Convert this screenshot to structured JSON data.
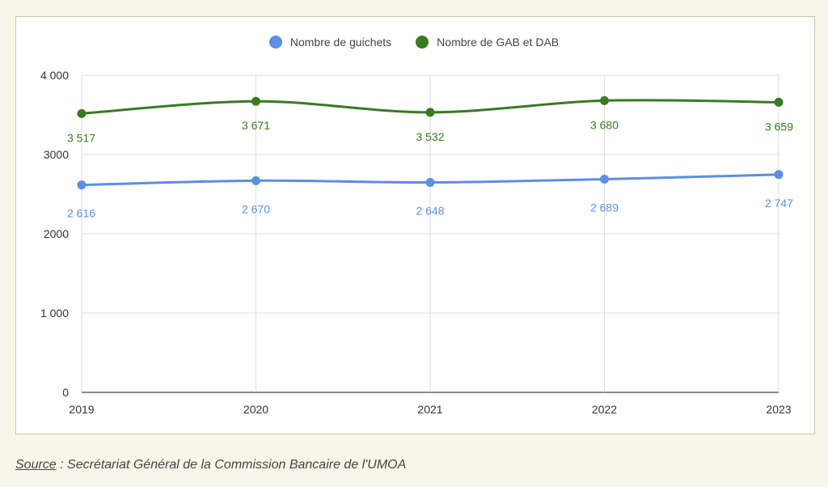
{
  "chart_data": {
    "type": "line",
    "categories": [
      "2019",
      "2020",
      "2021",
      "2022",
      "2023"
    ],
    "ylim": [
      0,
      4000
    ],
    "yticks": [
      0,
      1000,
      2000,
      3000,
      4000
    ],
    "ytick_labels": [
      "0",
      "1 000",
      "2000",
      "3000",
      "4 000"
    ],
    "grid": true,
    "legend_position": "top-center",
    "series": [
      {
        "name": "Nombre de guichets",
        "color": "#5b8ee6",
        "values": [
          2616,
          2670,
          2648,
          2689,
          2747
        ],
        "labels": [
          "2 616",
          "2 670",
          "2 648",
          "2 689",
          "2 747"
        ]
      },
      {
        "name": "Nombre de GAB et DAB",
        "color": "#3a7a22",
        "values": [
          3517,
          3671,
          3532,
          3680,
          3659
        ],
        "labels": [
          "3 517",
          "3 671",
          "3 532",
          "3 680",
          "3 659"
        ]
      }
    ]
  },
  "source": {
    "label": "Source",
    "text": " : Secrétariat Général de la Commission Bancaire de l'UMOA"
  }
}
